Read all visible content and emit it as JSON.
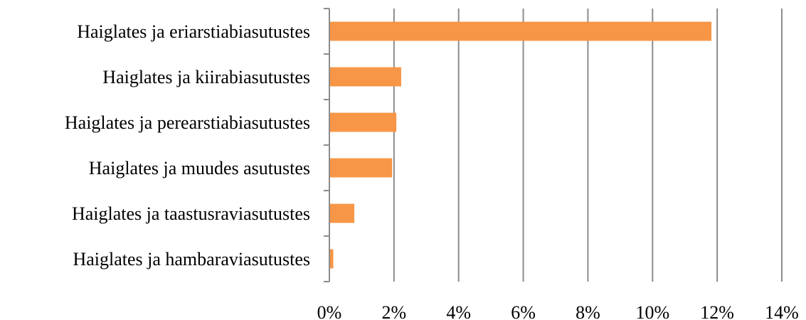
{
  "chart_data": {
    "type": "bar",
    "orientation": "horizontal",
    "title": "",
    "xlabel": "",
    "ylabel": "",
    "categories": [
      "Haiglates ja eriarstiabiasutustes",
      "Haiglates ja kiirabiasutustes",
      "Haiglates ja perearstiabiasutustes",
      "Haiglates ja muudes asutustes",
      "Haiglates ja taastusraviasutustes",
      "Haiglates ja hambaraviasutustes"
    ],
    "values": [
      11.8,
      2.2,
      2.05,
      1.92,
      0.75,
      0.1
    ],
    "xlim": [
      0,
      14
    ],
    "x_ticks": [
      0,
      2,
      4,
      6,
      8,
      10,
      12,
      14
    ],
    "x_tick_labels": [
      "0%",
      "2%",
      "4%",
      "6%",
      "8%",
      "10%",
      "12%",
      "14%"
    ],
    "grid": true,
    "legend": "none",
    "colors": {
      "bar": "#f79646",
      "grid": "#8c8c8c"
    }
  }
}
